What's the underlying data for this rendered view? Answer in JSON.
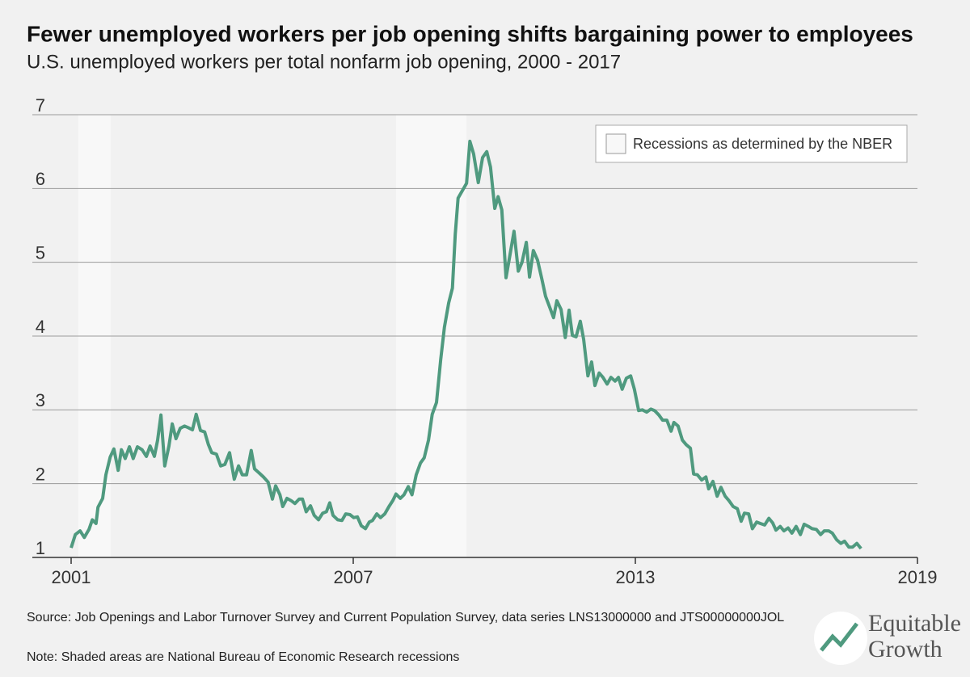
{
  "chart_data": {
    "type": "line",
    "title": "Fewer unemployed workers per job opening shifts bargaining power to employees",
    "subtitle": "U.S. unemployed workers per total nonfarm job opening, 2000 - 2017",
    "x": [
      2001.0,
      2001.09,
      2001.19,
      2001.28,
      2001.38,
      2001.45,
      2001.53,
      2001.57,
      2001.67,
      2001.74,
      2001.83,
      2001.91,
      2002.0,
      2002.07,
      2002.15,
      2002.24,
      2002.32,
      2002.41,
      2002.51,
      2002.6,
      2002.68,
      2002.77,
      2002.84,
      2002.91,
      2002.99,
      2003.08,
      2003.15,
      2003.23,
      2003.32,
      2003.41,
      2003.49,
      2003.58,
      2003.66,
      2003.75,
      2003.84,
      2003.92,
      2003.99,
      2004.09,
      2004.18,
      2004.27,
      2004.37,
      2004.47,
      2004.56,
      2004.64,
      2004.73,
      2004.83,
      2004.9,
      2004.99,
      2005.09,
      2005.19,
      2005.28,
      2005.35,
      2005.44,
      2005.5,
      2005.59,
      2005.68,
      2005.76,
      2005.85,
      2005.92,
      2006.0,
      2006.09,
      2006.17,
      2006.26,
      2006.35,
      2006.43,
      2006.5,
      2006.57,
      2006.67,
      2006.76,
      2006.84,
      2006.93,
      2007.01,
      2007.09,
      2007.17,
      2007.26,
      2007.34,
      2007.41,
      2007.5,
      2007.58,
      2007.67,
      2007.76,
      2007.84,
      2007.91,
      2008.0,
      2008.08,
      2008.17,
      2008.25,
      2008.34,
      2008.43,
      2008.51,
      2008.6,
      2008.68,
      2008.77,
      2008.86,
      2008.94,
      2009.03,
      2009.11,
      2009.17,
      2009.23,
      2009.32,
      2009.41,
      2009.48,
      2009.56,
      2009.66,
      2009.75,
      2009.84,
      2009.92,
      2010.01,
      2010.08,
      2010.16,
      2010.25,
      2010.32,
      2010.42,
      2010.51,
      2010.59,
      2010.68,
      2010.75,
      2010.83,
      2010.92,
      2011.01,
      2011.09,
      2011.18,
      2011.26,
      2011.33,
      2011.42,
      2011.51,
      2011.59,
      2011.66,
      2011.74,
      2011.83,
      2011.9,
      2011.99,
      2012.07,
      2012.14,
      2012.23,
      2012.31,
      2012.4,
      2012.48,
      2012.57,
      2012.64,
      2012.72,
      2012.81,
      2012.9,
      2012.98,
      2013.07,
      2013.15,
      2013.24,
      2013.33,
      2013.41,
      2013.5,
      2013.58,
      2013.67,
      2013.76,
      2013.82,
      2013.91,
      2014.0,
      2014.08,
      2014.17,
      2014.24,
      2014.32,
      2014.41,
      2014.5,
      2014.56,
      2014.65,
      2014.74,
      2014.82,
      2014.91,
      2014.99,
      2015.08,
      2015.17,
      2015.25,
      2015.32,
      2015.41,
      2015.49,
      2015.58,
      2015.66,
      2015.75,
      2015.84,
      2015.92,
      2015.99,
      2016.08,
      2016.16,
      2016.25,
      2016.33,
      2016.42,
      2016.51,
      2016.59,
      2016.68,
      2016.76,
      2016.85,
      2016.94,
      2017.02,
      2017.11,
      2017.19,
      2017.28,
      2017.37,
      2017.45,
      2017.54,
      2017.62,
      2017.71,
      2017.8
    ],
    "series": [
      {
        "color": "#4f9a7f",
        "values": [
          1.13,
          1.31,
          1.36,
          1.27,
          1.38,
          1.51,
          1.46,
          1.68,
          1.8,
          2.12,
          2.36,
          2.47,
          2.18,
          2.46,
          2.34,
          2.5,
          2.34,
          2.5,
          2.46,
          2.37,
          2.51,
          2.37,
          2.59,
          2.93,
          2.24,
          2.51,
          2.81,
          2.61,
          2.75,
          2.78,
          2.76,
          2.73,
          2.94,
          2.72,
          2.7,
          2.53,
          2.42,
          2.4,
          2.24,
          2.26,
          2.42,
          2.06,
          2.24,
          2.12,
          2.12,
          2.45,
          2.2,
          2.15,
          2.09,
          2.02,
          1.79,
          1.97,
          1.85,
          1.69,
          1.8,
          1.77,
          1.73,
          1.79,
          1.79,
          1.62,
          1.7,
          1.57,
          1.51,
          1.6,
          1.62,
          1.74,
          1.57,
          1.51,
          1.5,
          1.59,
          1.58,
          1.54,
          1.55,
          1.43,
          1.39,
          1.48,
          1.5,
          1.59,
          1.54,
          1.59,
          1.69,
          1.77,
          1.86,
          1.8,
          1.85,
          1.96,
          1.85,
          2.12,
          2.28,
          2.35,
          2.59,
          2.94,
          3.1,
          3.68,
          4.12,
          4.45,
          4.65,
          5.38,
          5.87,
          5.97,
          6.07,
          6.64,
          6.47,
          6.08,
          6.42,
          6.5,
          6.29,
          5.73,
          5.89,
          5.71,
          4.79,
          5.05,
          5.42,
          4.88,
          5.0,
          5.27,
          4.8,
          5.16,
          5.03,
          4.78,
          4.54,
          4.39,
          4.25,
          4.48,
          4.36,
          3.98,
          4.35,
          4.01,
          3.99,
          4.2,
          3.96,
          3.46,
          3.65,
          3.33,
          3.5,
          3.44,
          3.35,
          3.44,
          3.39,
          3.44,
          3.28,
          3.43,
          3.46,
          3.28,
          2.99,
          3.0,
          2.97,
          3.01,
          2.99,
          2.93,
          2.86,
          2.86,
          2.71,
          2.83,
          2.78,
          2.59,
          2.53,
          2.48,
          2.13,
          2.12,
          2.05,
          2.09,
          1.93,
          2.03,
          1.83,
          1.95,
          1.83,
          1.77,
          1.69,
          1.66,
          1.49,
          1.6,
          1.59,
          1.39,
          1.48,
          1.46,
          1.44,
          1.53,
          1.47,
          1.37,
          1.42,
          1.36,
          1.4,
          1.33,
          1.42,
          1.31,
          1.45,
          1.42,
          1.39,
          1.38,
          1.31,
          1.36,
          1.36,
          1.33,
          1.24,
          1.19,
          1.22,
          1.14,
          1.14,
          1.19,
          1.12
        ]
      }
    ],
    "xlim": [
      2001,
      2019
    ],
    "xticks": [
      2001,
      2007,
      2013,
      2019
    ],
    "ylim": [
      1,
      7
    ],
    "yticks": [
      1,
      2,
      3,
      4,
      5,
      6,
      7
    ],
    "grid": true,
    "recessions": {
      "name": "Recessions as determined by the NBER",
      "color": "#f8f8f8",
      "ranges": [
        [
          2001.15,
          2001.84
        ],
        [
          2007.91,
          2009.41
        ]
      ]
    },
    "legend_position": "upper right",
    "source": "Source: Job Openings and Labor Turnover Survey and Current Population Survey, data series LNS13000000 and JTS00000000JOL",
    "note": "Note: Shaded areas are National Bureau of Economic Research recessions",
    "logo": [
      "Equitable",
      "Growth"
    ]
  }
}
